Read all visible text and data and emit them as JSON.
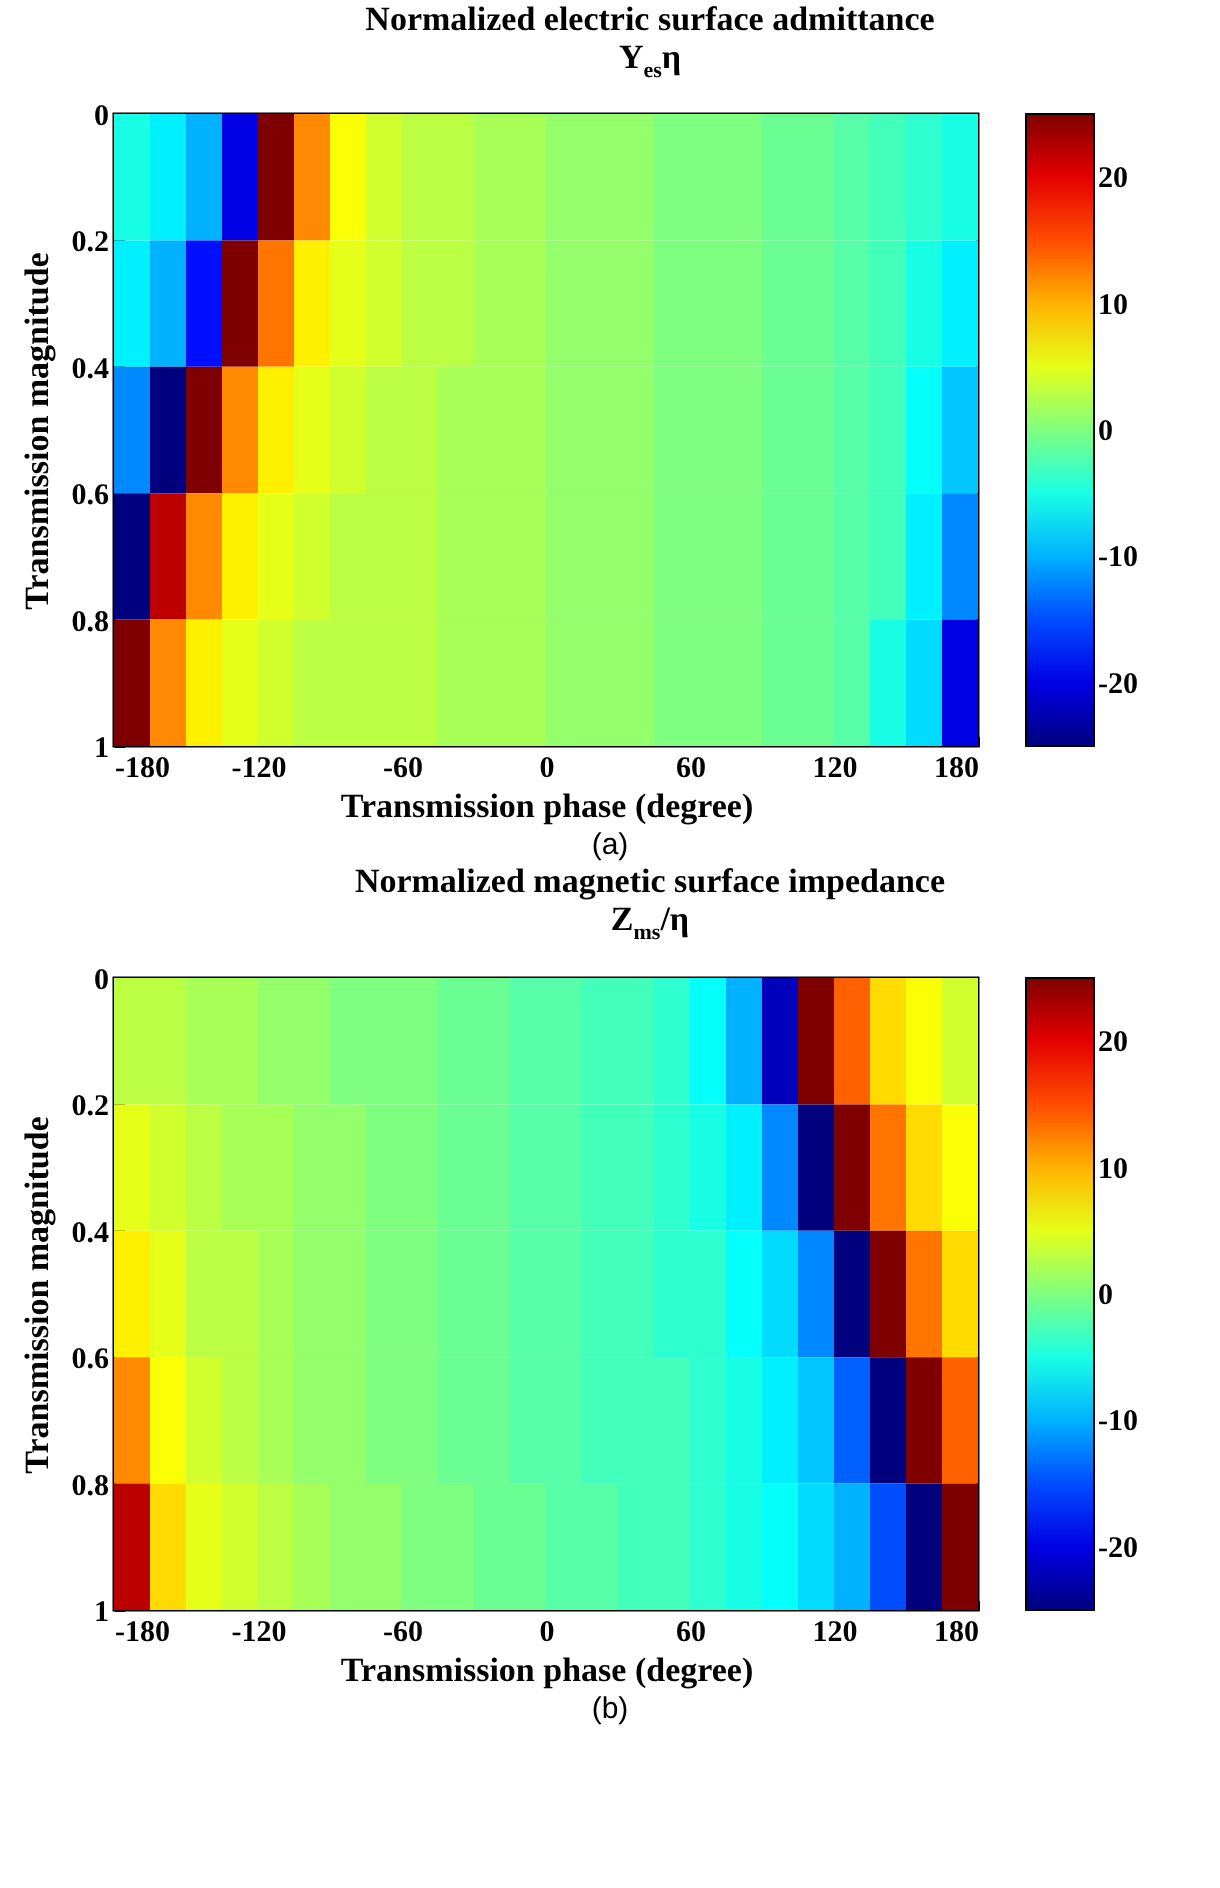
{
  "chart_data": [
    {
      "type": "heatmap",
      "title": "Normalized electric surface admittance",
      "subtitle": "Y$_{es}$η",
      "xlabel": "Transmission phase (degree)",
      "ylabel": "Transmission magnitude",
      "annotations": [
        "(a)"
      ],
      "x": [
        -172.5,
        -157.5,
        -142.5,
        -127.5,
        -112.5,
        -97.5,
        -82.5,
        -67.5,
        -52.5,
        -37.5,
        -22.5,
        -7.5,
        7.5,
        22.5,
        37.5,
        52.5,
        67.5,
        82.5,
        97.5,
        112.5,
        127.5,
        142.5,
        157.5,
        172.5
      ],
      "y": [
        0.1,
        0.3,
        0.5,
        0.7,
        0.9
      ],
      "xlim": [
        -180,
        180
      ],
      "xticks": [
        -180,
        -120,
        -60,
        0,
        60,
        120,
        180
      ],
      "ylim": [
        1,
        0
      ],
      "yticks": [
        0,
        0.2,
        0.4,
        0.6,
        0.8,
        1
      ],
      "clim": [
        -25,
        25
      ],
      "cticks": [
        -20,
        -10,
        0,
        10,
        20
      ],
      "cells": [
        [
          -5,
          -7,
          -10,
          -20,
          25,
          12,
          6,
          4,
          3,
          3,
          2,
          2,
          1,
          1,
          1,
          0,
          0,
          0,
          -1,
          -1,
          -2,
          -3,
          -4,
          -5
        ],
        [
          -7,
          -10,
          -18,
          25,
          13,
          7,
          5,
          4,
          3,
          3,
          2,
          2,
          1,
          1,
          1,
          0,
          0,
          0,
          -1,
          -1,
          -2,
          -3,
          -5,
          -7
        ],
        [
          -12,
          -25,
          25,
          12,
          7,
          5,
          4,
          3,
          3,
          2,
          2,
          2,
          1,
          1,
          1,
          0,
          0,
          0,
          -1,
          -1,
          -2,
          -3,
          -6,
          -9
        ],
        [
          -25,
          22,
          12,
          7,
          5,
          4,
          3,
          3,
          3,
          2,
          2,
          2,
          1,
          1,
          1,
          0,
          0,
          0,
          -1,
          -1,
          -2,
          -3,
          -7,
          -12
        ],
        [
          25,
          12,
          7,
          5,
          4,
          3,
          3,
          3,
          3,
          2,
          2,
          2,
          1,
          1,
          1,
          0,
          0,
          0,
          -1,
          -1,
          -2,
          -5,
          -8,
          -20
        ]
      ]
    },
    {
      "type": "heatmap",
      "title": "Normalized magnetic surface impedance",
      "subtitle": "Z$_{ms}$/η",
      "xlabel": "Transmission phase (degree)",
      "ylabel": "Transmission magnitude",
      "annotations": [
        "(b)"
      ],
      "x": [
        -172.5,
        -157.5,
        -142.5,
        -127.5,
        -112.5,
        -97.5,
        -82.5,
        -67.5,
        -52.5,
        -37.5,
        -22.5,
        -7.5,
        7.5,
        22.5,
        37.5,
        52.5,
        67.5,
        82.5,
        97.5,
        112.5,
        127.5,
        142.5,
        157.5,
        172.5
      ],
      "y": [
        0.1,
        0.3,
        0.5,
        0.7,
        0.9
      ],
      "xlim": [
        -180,
        180
      ],
      "xticks": [
        -180,
        -120,
        -60,
        0,
        60,
        120,
        180
      ],
      "ylim": [
        1,
        0
      ],
      "yticks": [
        0,
        0.2,
        0.4,
        0.6,
        0.8,
        1
      ],
      "clim": [
        -25,
        25
      ],
      "cticks": [
        -20,
        -10,
        0,
        10,
        20
      ],
      "cells": [
        [
          3,
          3,
          2,
          2,
          1,
          1,
          0,
          0,
          0,
          -1,
          -1,
          -2,
          -2,
          -3,
          -3,
          -4,
          -6,
          -10,
          -22,
          25,
          14,
          8,
          6,
          4
        ],
        [
          5,
          4,
          3,
          2,
          2,
          1,
          1,
          0,
          0,
          -1,
          -1,
          -2,
          -2,
          -3,
          -3,
          -4,
          -5,
          -7,
          -12,
          -25,
          25,
          13,
          8,
          6
        ],
        [
          7,
          5,
          3,
          3,
          2,
          1,
          1,
          0,
          0,
          -1,
          -1,
          -2,
          -2,
          -3,
          -3,
          -4,
          -4,
          -6,
          -8,
          -12,
          -25,
          25,
          13,
          8
        ],
        [
          12,
          6,
          4,
          3,
          2,
          1,
          1,
          0,
          0,
          -1,
          -1,
          -2,
          -2,
          -3,
          -3,
          -3,
          -4,
          -5,
          -7,
          -9,
          -14,
          -25,
          25,
          14
        ],
        [
          22,
          8,
          5,
          4,
          3,
          2,
          1,
          1,
          0,
          0,
          -1,
          -1,
          -2,
          -2,
          -3,
          -3,
          -4,
          -5,
          -6,
          -8,
          -10,
          -15,
          -25,
          25
        ]
      ]
    }
  ]
}
